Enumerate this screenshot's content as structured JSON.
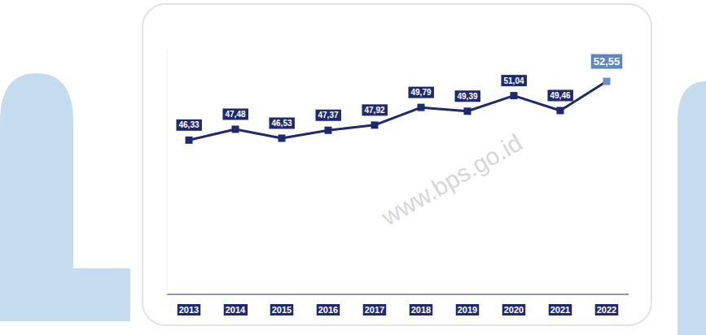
{
  "chart_data": {
    "type": "line",
    "categories": [
      "2013",
      "2014",
      "2015",
      "2016",
      "2017",
      "2018",
      "2019",
      "2020",
      "2021",
      "2022"
    ],
    "values": [
      46.33,
      47.48,
      46.53,
      47.37,
      47.92,
      49.79,
      49.39,
      51.04,
      49.46,
      52.55
    ],
    "value_labels": [
      "46,33",
      "47,48",
      "46,53",
      "47,37",
      "47,92",
      "49,79",
      "49,39",
      "51,04",
      "49,46",
      "52,55"
    ],
    "color": "#1f2a6e",
    "marker": "square",
    "ylim": [
      30,
      56
    ],
    "data_labels": true,
    "tick_labels": "x",
    "watermark": "www.bps.go.id"
  }
}
